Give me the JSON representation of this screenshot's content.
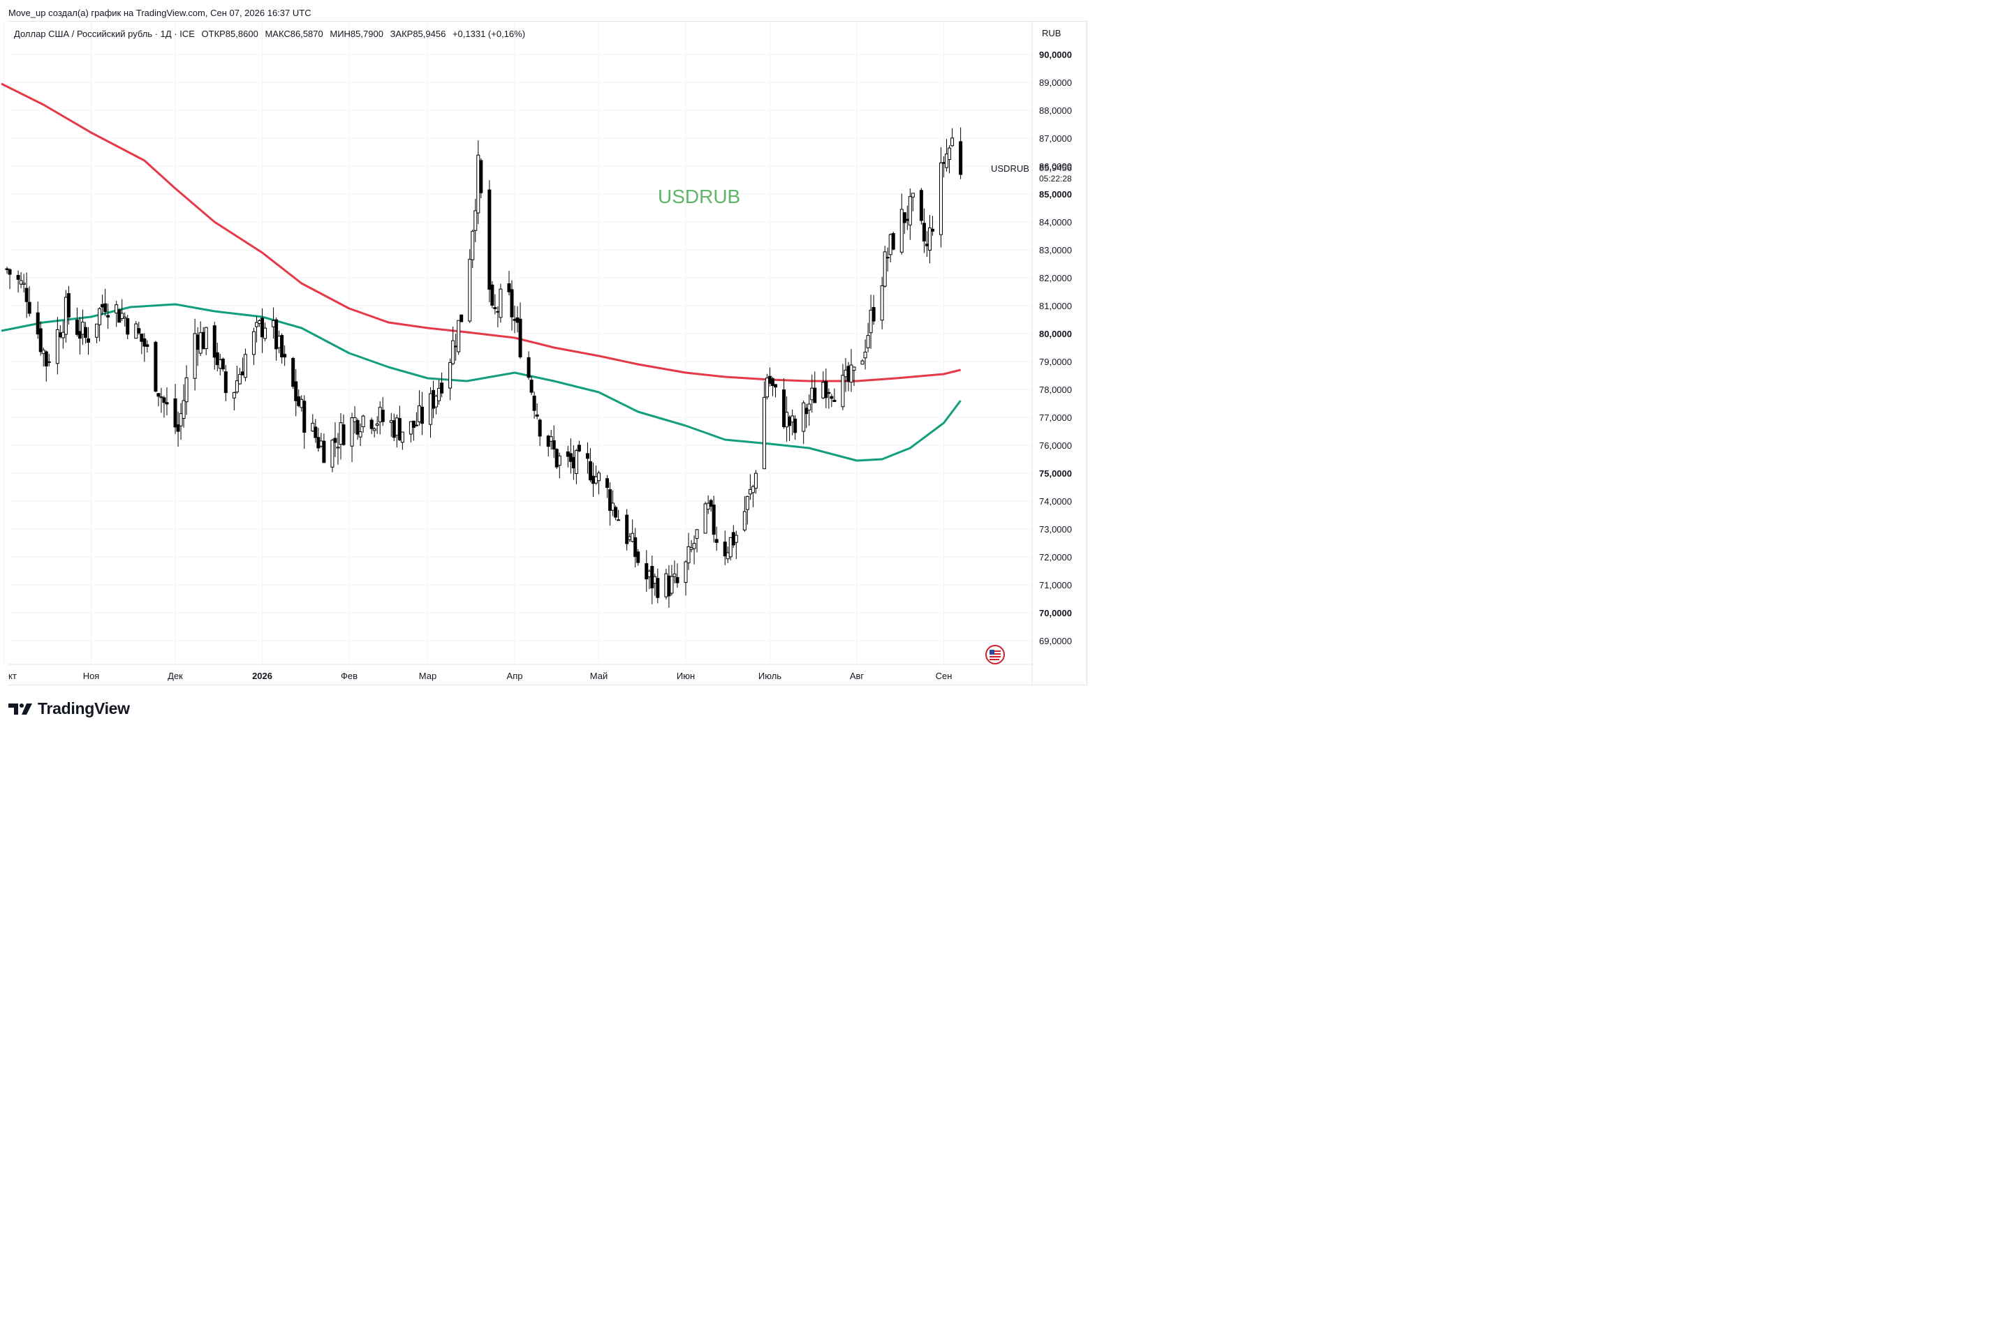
{
  "header": {
    "text": "Move_up создал(а) график на TradingView.com, Сен 07, 2026 16:37 UTC"
  },
  "legend": {
    "title": "Доллар США / Российский рубль · 1Д · ICE",
    "open": "ОТКР85,8600",
    "high": "МАКС86,5870",
    "low": "МИН85,7900",
    "close": "ЗАКР85,9456",
    "change": "+0,1331 (+0,16%)"
  },
  "currency": "RUB",
  "watermark": "USDRUB",
  "symbol_tag": "USDRUB",
  "last_price": "85,9456",
  "countdown": "05:22:28",
  "footer": {
    "brand": "TradingView",
    "logo_icon": "tradingview-logo-icon"
  },
  "colors": {
    "up": "#ffffff",
    "down": "#000000",
    "ma_long": "#e53948",
    "ma_short": "#139e7e",
    "grid": "#f0f3fa"
  },
  "chart_data": {
    "type": "candlestick",
    "ylim": [
      68.5,
      90.3
    ],
    "y_ticks": [
      "90,0000",
      "89,0000",
      "88,0000",
      "87,0000",
      "86,0000",
      "85,0000",
      "84,0000",
      "83,0000",
      "82,0000",
      "81,0000",
      "80,0000",
      "79,0000",
      "78,0000",
      "77,0000",
      "76,0000",
      "75,0000",
      "74,0000",
      "73,0000",
      "72,0000",
      "71,0000",
      "70,0000",
      "69,0000"
    ],
    "y_tick_values": [
      90,
      89,
      88,
      87,
      86,
      85,
      84,
      83,
      82,
      81,
      80,
      79,
      78,
      77,
      76,
      75,
      74,
      73,
      72,
      71,
      70,
      69
    ],
    "bold_ticks": [
      "90,0000",
      "85,0000",
      "80,0000",
      "75,0000",
      "70,0000"
    ],
    "x_labels": [
      "кт",
      "Ноя",
      "Дек",
      "2026",
      "Фев",
      "Мар",
      "Апр",
      "Май",
      "Июн",
      "Июль",
      "Авг",
      "Сен"
    ],
    "x_label_dates": [
      "2025-10-01",
      "2025-11-01",
      "2025-12-01",
      "2026-01-01",
      "2026-02-01",
      "2026-03-01",
      "2026-04-01",
      "2026-05-01",
      "2026-06-01",
      "2026-07-01",
      "2026-08-01",
      "2026-09-01"
    ],
    "bold_x_labels": [
      "2026"
    ],
    "x_range": [
      "2025-09-30",
      "2026-09-30"
    ],
    "series": [
      {
        "name": "USDRUB",
        "kind": "candles",
        "waypoints": [
          [
            "2025-10-02",
            82.3
          ],
          [
            "2025-10-09",
            81.5
          ],
          [
            "2025-10-16",
            79.0
          ],
          [
            "2025-10-23",
            80.8
          ],
          [
            "2025-10-30",
            79.8
          ],
          [
            "2025-11-06",
            81.2
          ],
          [
            "2025-11-13",
            80.6
          ],
          [
            "2025-11-20",
            79.6
          ],
          [
            "2025-11-27",
            77.5
          ],
          [
            "2025-12-02",
            76.5
          ],
          [
            "2025-12-08",
            80.0
          ],
          [
            "2025-12-15",
            79.5
          ],
          [
            "2025-12-20",
            77.5
          ],
          [
            "2025-12-27",
            79.5
          ],
          [
            "2026-01-03",
            80.6
          ],
          [
            "2026-01-10",
            78.5
          ],
          [
            "2026-01-17",
            76.7
          ],
          [
            "2026-01-24",
            75.8
          ],
          [
            "2026-02-01",
            76.8
          ],
          [
            "2026-02-08",
            77.1
          ],
          [
            "2026-02-15",
            76.8
          ],
          [
            "2026-02-22",
            76.5
          ],
          [
            "2026-03-01",
            77.2
          ],
          [
            "2026-03-08",
            78.9
          ],
          [
            "2026-03-14",
            81.0
          ],
          [
            "2026-03-19",
            85.9
          ],
          [
            "2026-03-24",
            80.5
          ],
          [
            "2026-03-29",
            81.5
          ],
          [
            "2026-04-04",
            79.3
          ],
          [
            "2026-04-10",
            76.8
          ],
          [
            "2026-04-16",
            75.5
          ],
          [
            "2026-04-22",
            75.3
          ],
          [
            "2026-04-28",
            75.2
          ],
          [
            "2026-05-04",
            74.3
          ],
          [
            "2026-05-10",
            73.0
          ],
          [
            "2026-05-18",
            71.2
          ],
          [
            "2026-05-24",
            71.0
          ],
          [
            "2026-05-30",
            71.0
          ],
          [
            "2026-06-04",
            72.5
          ],
          [
            "2026-06-09",
            73.6
          ],
          [
            "2026-06-14",
            72.2
          ],
          [
            "2026-06-19",
            72.8
          ],
          [
            "2026-06-25",
            74.5
          ],
          [
            "2026-06-30",
            78.5
          ],
          [
            "2026-07-05",
            77.2
          ],
          [
            "2026-07-10",
            76.5
          ],
          [
            "2026-07-15",
            77.5
          ],
          [
            "2026-07-20",
            78.3
          ],
          [
            "2026-07-26",
            78.0
          ],
          [
            "2026-08-01",
            78.5
          ],
          [
            "2026-08-06",
            80.5
          ],
          [
            "2026-08-11",
            82.5
          ],
          [
            "2026-08-16",
            84.0
          ],
          [
            "2026-08-21",
            84.5
          ],
          [
            "2026-08-26",
            83.0
          ],
          [
            "2026-09-01",
            86.2
          ],
          [
            "2026-09-04",
            86.9
          ],
          [
            "2026-09-07",
            85.95
          ]
        ]
      },
      {
        "name": "",
        "kind": "line",
        "color": "#e53948",
        "points": [
          [
            "2025-09-30",
            88.95
          ],
          [
            "2025-10-15",
            88.2
          ],
          [
            "2025-11-01",
            87.2
          ],
          [
            "2025-11-20",
            86.2
          ],
          [
            "2025-12-01",
            85.2
          ],
          [
            "2025-12-15",
            84.0
          ],
          [
            "2026-01-01",
            82.9
          ],
          [
            "2026-01-15",
            81.8
          ],
          [
            "2026-02-01",
            80.9
          ],
          [
            "2026-02-15",
            80.4
          ],
          [
            "2026-03-01",
            80.2
          ],
          [
            "2026-03-15",
            80.05
          ],
          [
            "2026-04-01",
            79.85
          ],
          [
            "2026-04-15",
            79.5
          ],
          [
            "2026-05-01",
            79.2
          ],
          [
            "2026-05-15",
            78.9
          ],
          [
            "2026-06-01",
            78.6
          ],
          [
            "2026-06-15",
            78.45
          ],
          [
            "2026-07-01",
            78.35
          ],
          [
            "2026-07-15",
            78.3
          ],
          [
            "2026-08-01",
            78.3
          ],
          [
            "2026-08-15",
            78.4
          ],
          [
            "2026-09-01",
            78.55
          ],
          [
            "2026-09-07",
            78.7
          ]
        ]
      },
      {
        "name": "",
        "kind": "line",
        "color": "#139e7e",
        "points": [
          [
            "2025-09-30",
            80.1
          ],
          [
            "2025-10-15",
            80.4
          ],
          [
            "2025-11-01",
            80.6
          ],
          [
            "2025-11-15",
            80.95
          ],
          [
            "2025-12-01",
            81.05
          ],
          [
            "2025-12-15",
            80.8
          ],
          [
            "2026-01-01",
            80.6
          ],
          [
            "2026-01-15",
            80.2
          ],
          [
            "2026-02-01",
            79.3
          ],
          [
            "2026-02-15",
            78.8
          ],
          [
            "2026-03-01",
            78.4
          ],
          [
            "2026-03-15",
            78.3
          ],
          [
            "2026-04-01",
            78.6
          ],
          [
            "2026-04-15",
            78.3
          ],
          [
            "2026-05-01",
            77.9
          ],
          [
            "2026-05-15",
            77.2
          ],
          [
            "2026-06-01",
            76.7
          ],
          [
            "2026-06-15",
            76.2
          ],
          [
            "2026-07-01",
            76.05
          ],
          [
            "2026-07-15",
            75.9
          ],
          [
            "2026-08-01",
            75.45
          ],
          [
            "2026-08-10",
            75.5
          ],
          [
            "2026-08-20",
            75.9
          ],
          [
            "2026-09-01",
            76.8
          ],
          [
            "2026-09-07",
            77.6
          ]
        ]
      }
    ]
  }
}
